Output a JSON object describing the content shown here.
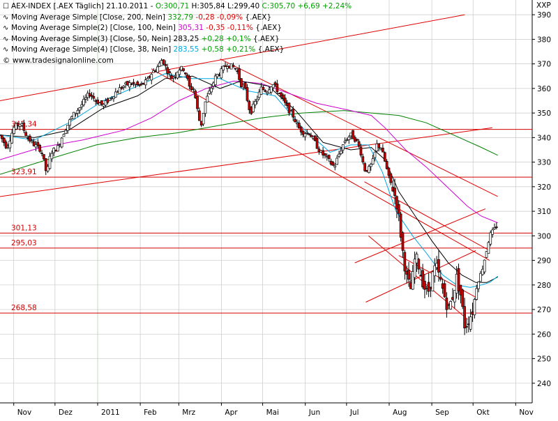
{
  "header": {
    "title_prefix": "AEX-INDEX [.AEX  Täglich]  21.10.2011 - ",
    "ohlc": [
      {
        "text": "O:300,71",
        "color": "pos"
      },
      {
        "text": " H:305,84",
        "color": ""
      },
      {
        "text": " L:299,40",
        "color": ""
      },
      {
        "text": " C:305,70 +6,69 +2,24%",
        "color": "pos"
      }
    ],
    "exchange": "XXP"
  },
  "legend": [
    {
      "icon": "∿",
      "label": "Moving Average Simple [Close, 200, Nein] ",
      "value": "332,79",
      "value_color": "#00a000",
      "change": "-0,28 -0,09%",
      "change_color": "#e00000",
      "suffix": " {.AEX}"
    },
    {
      "icon": "∿",
      "label": "Moving Average Simple(2) [Close, 100, Nein] ",
      "value": "305,31",
      "value_color": "#d000d0",
      "change": "-0,35 -0,11%",
      "change_color": "#e00000",
      "suffix": " {.AEX}"
    },
    {
      "icon": "∿",
      "label": "Moving Average Simple(3) [Close, 50, Nein] ",
      "value": "283,25",
      "value_color": "#000000",
      "change": "+0,28 +0,1%",
      "change_color": "#00a000",
      "suffix": " {.AEX}"
    },
    {
      "icon": "∿",
      "label": "Moving Average Simple(4) [Close, 38, Nein] ",
      "value": "283,55",
      "value_color": "#00a8e0",
      "change": "+0,58 +0,21%",
      "change_color": "#00a000",
      "suffix": " {.AEX}"
    }
  ],
  "copyright": "© www.tradesignalonline.com",
  "chart_data": {
    "type": "candlestick",
    "title": "AEX-INDEX [.AEX Täglich] 21.10.2011",
    "ylim": [
      232,
      396
    ],
    "y_ticks": [
      240,
      250,
      260,
      270,
      280,
      290,
      300,
      310,
      320,
      330,
      340,
      350,
      360,
      370,
      380,
      390
    ],
    "x_ticks": [
      {
        "label": "Nov",
        "day": 0
      },
      {
        "label": "Dez",
        "day": 30
      },
      {
        "label": "2011",
        "day": 61
      },
      {
        "label": "Feb",
        "day": 92
      },
      {
        "label": "Mrz",
        "day": 120
      },
      {
        "label": "Apr",
        "day": 151
      },
      {
        "label": "Mai",
        "day": 181
      },
      {
        "label": "Jun",
        "day": 212
      },
      {
        "label": "Jul",
        "day": 242
      },
      {
        "label": "Aug",
        "day": 273
      },
      {
        "label": "Sep",
        "day": 304
      },
      {
        "label": "Okt",
        "day": 334
      },
      {
        "label": "Nov",
        "day": 365
      }
    ],
    "x_start_day": -10,
    "x_end_day": 377,
    "support_levels": [
      {
        "value": 343.34,
        "label": "343,34"
      },
      {
        "value": 323.91,
        "label": "323,91"
      },
      {
        "value": 301.13,
        "label": "301,13"
      },
      {
        "value": 295.03,
        "label": "295,03"
      },
      {
        "value": 268.58,
        "label": "268,58"
      }
    ],
    "trend_lines": [
      {
        "from": [
          -10,
          355
        ],
        "to": [
          328,
          390
        ]
      },
      {
        "from": [
          -10,
          316
        ],
        "to": [
          348,
          344
        ]
      },
      {
        "from": [
          150,
          372
        ],
        "to": [
          352,
          316
        ]
      },
      {
        "from": [
          100,
          368
        ],
        "to": [
          346,
          290
        ]
      },
      {
        "from": [
          255,
          322
        ],
        "to": [
          346,
          294
        ]
      },
      {
        "from": [
          248,
          289
        ],
        "to": [
          343,
          311
        ]
      },
      {
        "from": [
          256,
          273
        ],
        "to": [
          336,
          294
        ]
      },
      {
        "from": [
          258,
          300
        ],
        "to": [
          330,
          266
        ]
      },
      {
        "from": [
          280,
          292
        ],
        "to": [
          336,
          275
        ]
      }
    ],
    "close_path": [
      [
        -10,
        341
      ],
      [
        -5,
        336
      ],
      [
        0,
        344
      ],
      [
        5,
        346
      ],
      [
        10,
        340
      ],
      [
        15,
        337
      ],
      [
        20,
        335
      ],
      [
        24,
        325
      ],
      [
        27,
        334
      ],
      [
        32,
        336
      ],
      [
        37,
        343
      ],
      [
        43,
        349
      ],
      [
        49,
        353
      ],
      [
        55,
        358
      ],
      [
        60,
        355
      ],
      [
        65,
        353
      ],
      [
        70,
        356
      ],
      [
        75,
        359
      ],
      [
        80,
        361
      ],
      [
        85,
        362
      ],
      [
        92,
        361
      ],
      [
        97,
        363
      ],
      [
        100,
        366
      ],
      [
        105,
        369
      ],
      [
        108,
        372
      ],
      [
        111,
        368
      ],
      [
        115,
        364
      ],
      [
        120,
        368
      ],
      [
        124,
        368
      ],
      [
        128,
        360
      ],
      [
        131,
        360
      ],
      [
        133,
        353
      ],
      [
        136,
        344
      ],
      [
        139,
        354
      ],
      [
        142,
        358
      ],
      [
        147,
        365
      ],
      [
        151,
        367
      ],
      [
        155,
        370
      ],
      [
        158,
        369
      ],
      [
        162,
        368
      ],
      [
        165,
        362
      ],
      [
        168,
        360
      ],
      [
        172,
        350
      ],
      [
        177,
        356
      ],
      [
        180,
        360
      ],
      [
        184,
        359
      ],
      [
        188,
        362
      ],
      [
        191,
        360
      ],
      [
        195,
        356
      ],
      [
        199,
        352
      ],
      [
        203,
        349
      ],
      [
        207,
        344
      ],
      [
        211,
        342
      ],
      [
        215,
        342
      ],
      [
        219,
        338
      ],
      [
        223,
        334
      ],
      [
        227,
        332
      ],
      [
        230,
        330
      ],
      [
        233,
        328
      ],
      [
        237,
        334
      ],
      [
        241,
        339
      ],
      [
        245,
        341
      ],
      [
        249,
        339
      ],
      [
        252,
        335
      ],
      [
        255,
        327
      ],
      [
        258,
        327
      ],
      [
        261,
        330
      ],
      [
        264,
        337
      ],
      [
        267,
        336
      ],
      [
        270,
        330
      ],
      [
        273,
        323
      ],
      [
        276,
        319
      ],
      [
        279,
        312
      ],
      [
        281,
        303
      ],
      [
        283,
        293
      ],
      [
        286,
        282
      ],
      [
        289,
        278
      ],
      [
        292,
        292
      ],
      [
        295,
        287
      ],
      [
        298,
        280
      ],
      [
        301,
        276
      ],
      [
        304,
        283
      ],
      [
        307,
        288
      ],
      [
        310,
        282
      ],
      [
        313,
        276
      ],
      [
        316,
        270
      ],
      [
        319,
        275
      ],
      [
        322,
        283
      ],
      [
        325,
        276
      ],
      [
        328,
        263
      ],
      [
        331,
        266
      ],
      [
        334,
        270
      ],
      [
        337,
        281
      ],
      [
        340,
        285
      ],
      [
        343,
        292
      ],
      [
        346,
        300
      ],
      [
        349,
        302
      ],
      [
        352,
        305
      ]
    ],
    "series": [
      {
        "name": "Moving Average Simple [Close, 200, Nein]",
        "color": "#008000",
        "points": [
          [
            -10,
            325
          ],
          [
            30,
            332
          ],
          [
            60,
            337
          ],
          [
            90,
            340
          ],
          [
            120,
            342
          ],
          [
            150,
            345
          ],
          [
            180,
            348
          ],
          [
            210,
            350
          ],
          [
            240,
            351
          ],
          [
            260,
            350
          ],
          [
            280,
            349
          ],
          [
            300,
            346
          ],
          [
            320,
            341
          ],
          [
            340,
            336
          ],
          [
            352,
            332.79
          ]
        ]
      },
      {
        "name": "Moving Average Simple(2) [Close, 100, Nein]",
        "color": "#d000d0",
        "points": [
          [
            -10,
            331
          ],
          [
            20,
            336
          ],
          [
            50,
            339
          ],
          [
            80,
            343
          ],
          [
            100,
            348
          ],
          [
            120,
            355
          ],
          [
            140,
            360
          ],
          [
            160,
            363
          ],
          [
            180,
            362
          ],
          [
            200,
            358
          ],
          [
            220,
            354
          ],
          [
            245,
            351
          ],
          [
            260,
            349
          ],
          [
            270,
            344
          ],
          [
            285,
            335
          ],
          [
            300,
            328
          ],
          [
            315,
            320
          ],
          [
            330,
            312
          ],
          [
            340,
            308
          ],
          [
            352,
            305.31
          ]
        ]
      },
      {
        "name": "Moving Average Simple(3) [Close, 50, Nein]",
        "color": "#000000",
        "points": [
          [
            -10,
            341
          ],
          [
            15,
            340
          ],
          [
            40,
            343
          ],
          [
            65,
            352
          ],
          [
            90,
            357
          ],
          [
            110,
            364
          ],
          [
            130,
            365
          ],
          [
            150,
            360
          ],
          [
            165,
            363
          ],
          [
            185,
            361
          ],
          [
            205,
            351
          ],
          [
            225,
            338
          ],
          [
            245,
            335
          ],
          [
            260,
            336
          ],
          [
            270,
            331
          ],
          [
            280,
            318
          ],
          [
            292,
            308
          ],
          [
            304,
            298
          ],
          [
            316,
            289
          ],
          [
            326,
            284
          ],
          [
            336,
            281
          ],
          [
            344,
            281
          ],
          [
            352,
            283.25
          ]
        ]
      },
      {
        "name": "Moving Average Simple(4) [Close, 38, Nein]",
        "color": "#00a8e0",
        "points": [
          [
            -10,
            341
          ],
          [
            15,
            339
          ],
          [
            40,
            346
          ],
          [
            65,
            355
          ],
          [
            90,
            361
          ],
          [
            110,
            366
          ],
          [
            130,
            364
          ],
          [
            150,
            364
          ],
          [
            170,
            359
          ],
          [
            190,
            357
          ],
          [
            210,
            344
          ],
          [
            230,
            334
          ],
          [
            245,
            337
          ],
          [
            258,
            337
          ],
          [
            268,
            326
          ],
          [
            278,
            310
          ],
          [
            290,
            300
          ],
          [
            300,
            293
          ],
          [
            312,
            284
          ],
          [
            322,
            280
          ],
          [
            332,
            279
          ],
          [
            340,
            280
          ],
          [
            346,
            281
          ],
          [
            352,
            283.55
          ]
        ]
      }
    ]
  }
}
